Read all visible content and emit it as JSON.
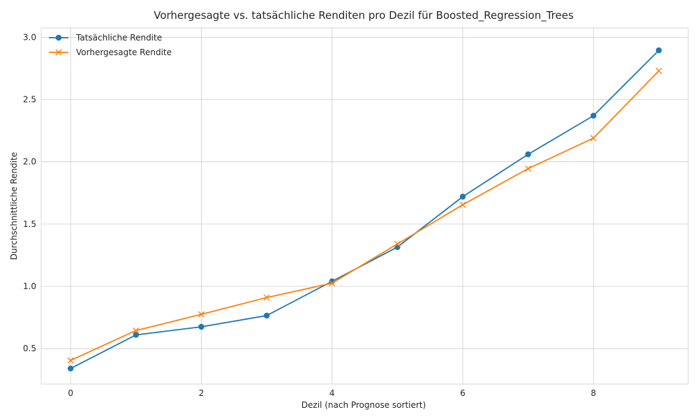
{
  "chart_data": {
    "type": "line",
    "title": "Vorhergesagte vs. tatsächliche Renditen pro Dezil für Boosted_Regression_Trees",
    "xlabel": "Dezil (nach Prognose sortiert)",
    "ylabel": "Durchschnittliche Rendite",
    "x": [
      0,
      1,
      2,
      3,
      4,
      5,
      6,
      7,
      8,
      9
    ],
    "xlim": [
      -0.45,
      9.45
    ],
    "ylim": [
      0.215,
      3.075
    ],
    "xticks": [
      0,
      2,
      4,
      6,
      8
    ],
    "xtick_labels": [
      "0",
      "2",
      "4",
      "6",
      "8"
    ],
    "yticks": [
      0.5,
      1.0,
      1.5,
      2.0,
      2.5,
      3.0
    ],
    "ytick_labels": [
      "0.5",
      "1.0",
      "1.5",
      "2.0",
      "2.5",
      "3.0"
    ],
    "grid": true,
    "legend_position": "top-left",
    "series": [
      {
        "name": "Tatsächliche Rendite",
        "color": "#1f77b4",
        "marker": "circle",
        "values": [
          0.34,
          0.61,
          0.675,
          0.765,
          1.04,
          1.315,
          1.72,
          2.06,
          2.37,
          2.895
        ]
      },
      {
        "name": "Vorhergesagte Rendite",
        "color": "#ff7f0e",
        "marker": "x",
        "values": [
          0.405,
          0.645,
          0.775,
          0.91,
          1.025,
          1.34,
          1.655,
          1.945,
          2.19,
          2.73
        ]
      }
    ]
  }
}
